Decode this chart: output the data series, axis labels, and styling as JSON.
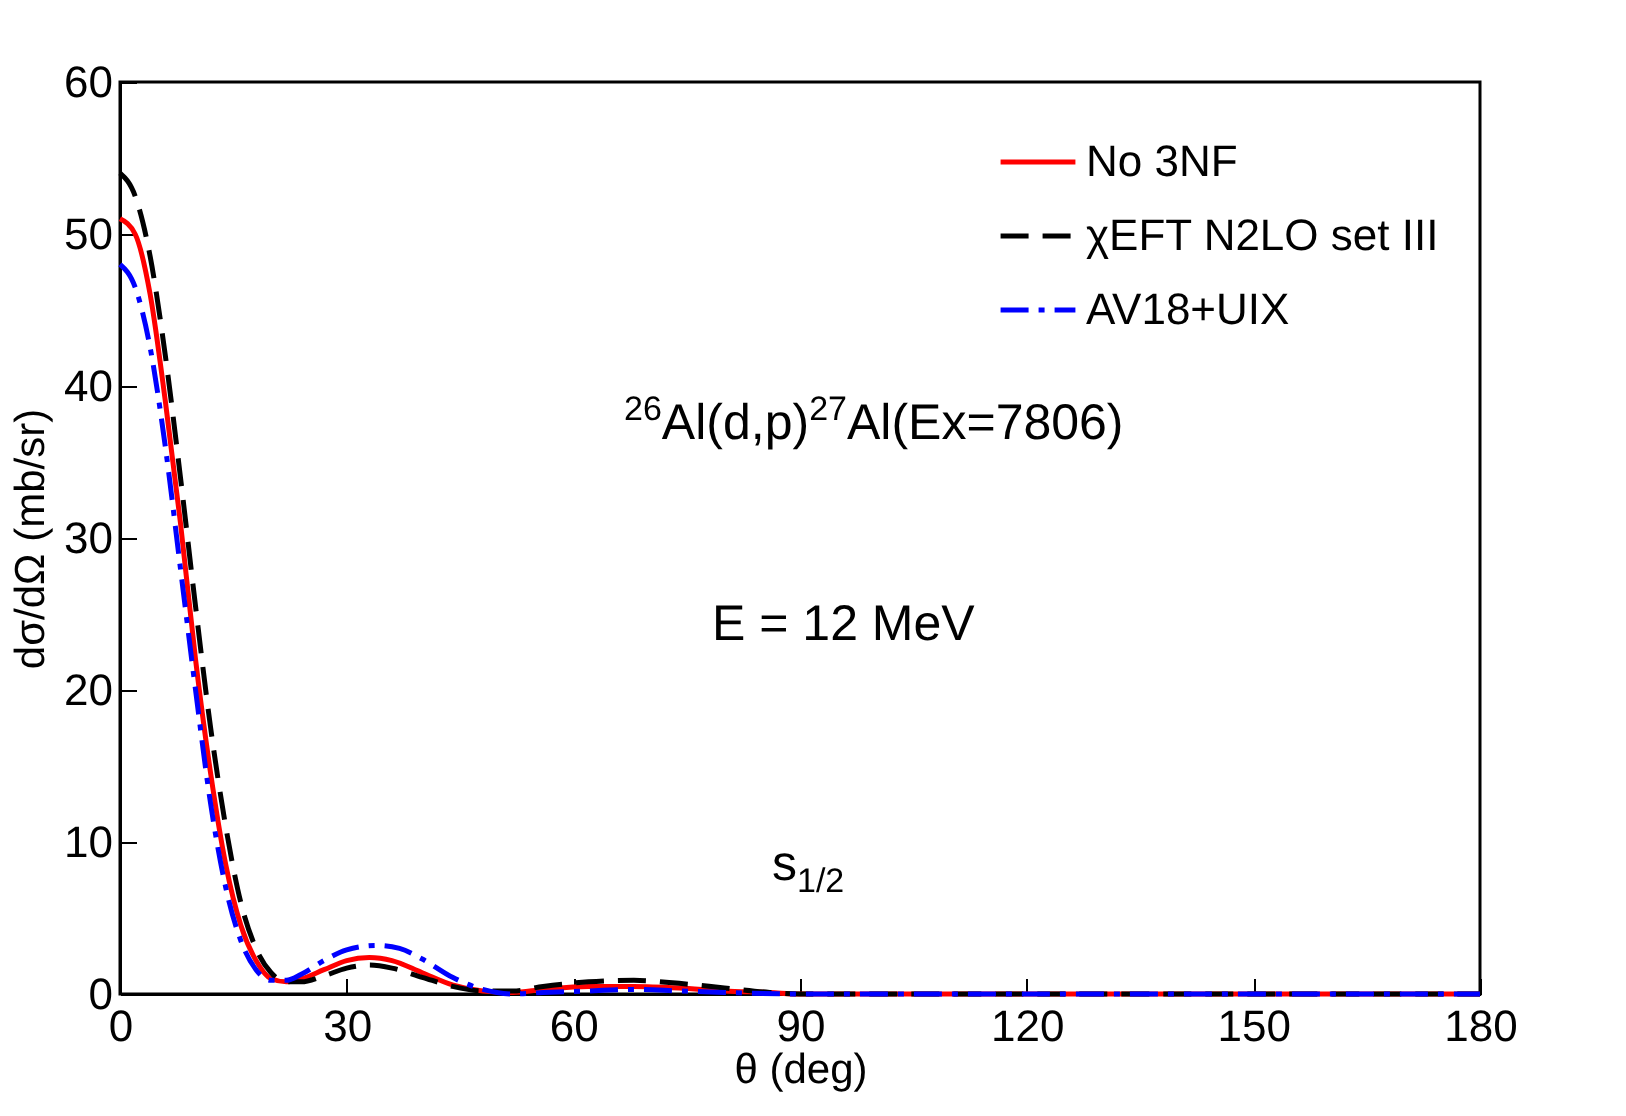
{
  "chart_data": {
    "type": "line",
    "xlabel": "θ (deg)",
    "ylabel": "dσ/dΩ (mb/sr)",
    "xlim": [
      0,
      180
    ],
    "xticks": [
      0,
      30,
      60,
      90,
      120,
      150,
      180
    ],
    "ylim": [
      0,
      60
    ],
    "yticks": [
      0,
      10,
      20,
      30,
      40,
      50,
      60
    ],
    "grid": false,
    "legend": "top right",
    "marker": "none",
    "annotations": [
      "$^{26}$Al(d,p)$^{27}$Al(Ex=7806)",
      "E = 12 MeV",
      "s$_{1/2}$"
    ],
    "series": [
      {
        "name": "No 3NF",
        "color": "#ff0000",
        "line_style": "solid",
        "x": [
          0,
          2,
          4,
          6,
          8,
          10,
          12,
          14,
          16,
          18,
          20,
          22,
          24,
          27,
          30,
          33,
          36,
          40,
          44,
          48,
          52,
          56,
          62,
          68,
          74,
          80,
          86,
          90,
          120,
          150,
          180
        ],
        "values": [
          51,
          50,
          46,
          39,
          31,
          22,
          14.5,
          8.5,
          4.5,
          2.2,
          1,
          0.8,
          1,
          1.6,
          2.2,
          2.4,
          2.2,
          1.4,
          0.6,
          0.2,
          0.1,
          0.3,
          0.5,
          0.5,
          0.4,
          0.2,
          0.1,
          0,
          0,
          0,
          0
        ]
      },
      {
        "name": "χEFT N2LO set III",
        "color": "#000000",
        "line_style": "dashed",
        "x": [
          0,
          2,
          4,
          6,
          8,
          10,
          12,
          14,
          16,
          18,
          20,
          22,
          24,
          27,
          30,
          33,
          36,
          40,
          44,
          48,
          52,
          56,
          62,
          68,
          74,
          80,
          86,
          90,
          120,
          150,
          180
        ],
        "values": [
          54,
          52.5,
          48.5,
          42,
          34,
          25.5,
          17.5,
          11,
          6,
          3,
          1.4,
          0.8,
          0.8,
          1.2,
          1.7,
          1.9,
          1.7,
          1.1,
          0.5,
          0.2,
          0.2,
          0.5,
          0.8,
          0.9,
          0.7,
          0.4,
          0.1,
          0,
          0,
          0,
          0
        ]
      },
      {
        "name": "AV18+UIX",
        "color": "#0000ff",
        "line_style": "dashdot",
        "x": [
          0,
          2,
          4,
          6,
          8,
          10,
          12,
          14,
          16,
          18,
          20,
          22,
          24,
          27,
          30,
          34,
          37,
          40,
          44,
          48,
          52,
          56,
          62,
          68,
          74,
          80,
          90,
          120,
          150,
          180
        ],
        "values": [
          48,
          46.5,
          42.5,
          36,
          28,
          20,
          12.5,
          7,
          3.5,
          1.6,
          0.9,
          0.9,
          1.3,
          2.2,
          2.9,
          3.2,
          3,
          2.3,
          1.1,
          0.3,
          0,
          0.1,
          0.2,
          0.3,
          0.2,
          0.1,
          0,
          0,
          0,
          0
        ]
      }
    ]
  }
}
